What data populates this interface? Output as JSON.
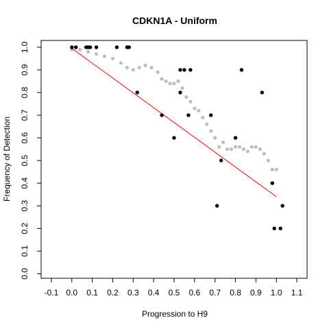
{
  "chart_data": {
    "type": "scatter",
    "title": "CDKN1A - Uniform",
    "xlabel": "Progression to H9",
    "ylabel": "Frequency of Detection",
    "xlim": [
      -0.15,
      1.15
    ],
    "ylim": [
      -0.02,
      1.03
    ],
    "x_ticks": [
      "-0.1",
      "0.0",
      "0.1",
      "0.2",
      "0.3",
      "0.4",
      "0.5",
      "0.6",
      "0.7",
      "0.8",
      "0.9",
      "1.0",
      "1.1"
    ],
    "y_ticks": [
      "0.0",
      "0.1",
      "0.2",
      "0.3",
      "0.4",
      "0.5",
      "0.6",
      "0.7",
      "0.8",
      "0.9",
      "1.0"
    ],
    "grid": false,
    "colors": {
      "points": "#000000",
      "smooth": "#bebebe",
      "fit": "#ff0000"
    },
    "series": [
      {
        "kind": "points",
        "x": [
          0.0,
          0.02,
          0.07,
          0.08,
          0.09,
          0.12,
          0.22,
          0.27,
          0.28,
          0.32,
          0.44,
          0.5,
          0.53,
          0.53,
          0.55,
          0.57,
          0.58,
          0.68,
          0.71,
          0.73,
          0.8,
          0.83,
          0.93,
          0.98,
          0.99,
          1.02,
          1.03
        ],
        "y": [
          1.0,
          1.0,
          1.0,
          1.0,
          1.0,
          1.0,
          1.0,
          1.0,
          1.0,
          0.8,
          0.7,
          0.6,
          0.9,
          0.8,
          0.9,
          0.7,
          0.9,
          0.7,
          0.3,
          0.5,
          0.6,
          0.9,
          0.8,
          0.4,
          0.2,
          0.2,
          0.3
        ]
      },
      {
        "kind": "smooth",
        "x": [
          0.0,
          0.04,
          0.08,
          0.12,
          0.16,
          0.2,
          0.24,
          0.27,
          0.3,
          0.33,
          0.36,
          0.39,
          0.42,
          0.44,
          0.46,
          0.48,
          0.5,
          0.52,
          0.54,
          0.56,
          0.58,
          0.6,
          0.62,
          0.64,
          0.66,
          0.68,
          0.7,
          0.72,
          0.74,
          0.76,
          0.78,
          0.8,
          0.82,
          0.84,
          0.86,
          0.88,
          0.9,
          0.92,
          0.94,
          0.96,
          0.98,
          1.0
        ],
        "y": [
          0.99,
          0.99,
          0.98,
          0.97,
          0.96,
          0.95,
          0.93,
          0.91,
          0.9,
          0.91,
          0.92,
          0.91,
          0.89,
          0.86,
          0.85,
          0.84,
          0.84,
          0.85,
          0.82,
          0.78,
          0.76,
          0.73,
          0.72,
          0.69,
          0.66,
          0.63,
          0.6,
          0.56,
          0.58,
          0.55,
          0.55,
          0.56,
          0.56,
          0.55,
          0.54,
          0.56,
          0.56,
          0.55,
          0.53,
          0.5,
          0.46,
          0.46
        ]
      },
      {
        "kind": "fit",
        "x": [
          0.0,
          1.0
        ],
        "y": [
          0.995,
          0.34
        ]
      }
    ]
  }
}
